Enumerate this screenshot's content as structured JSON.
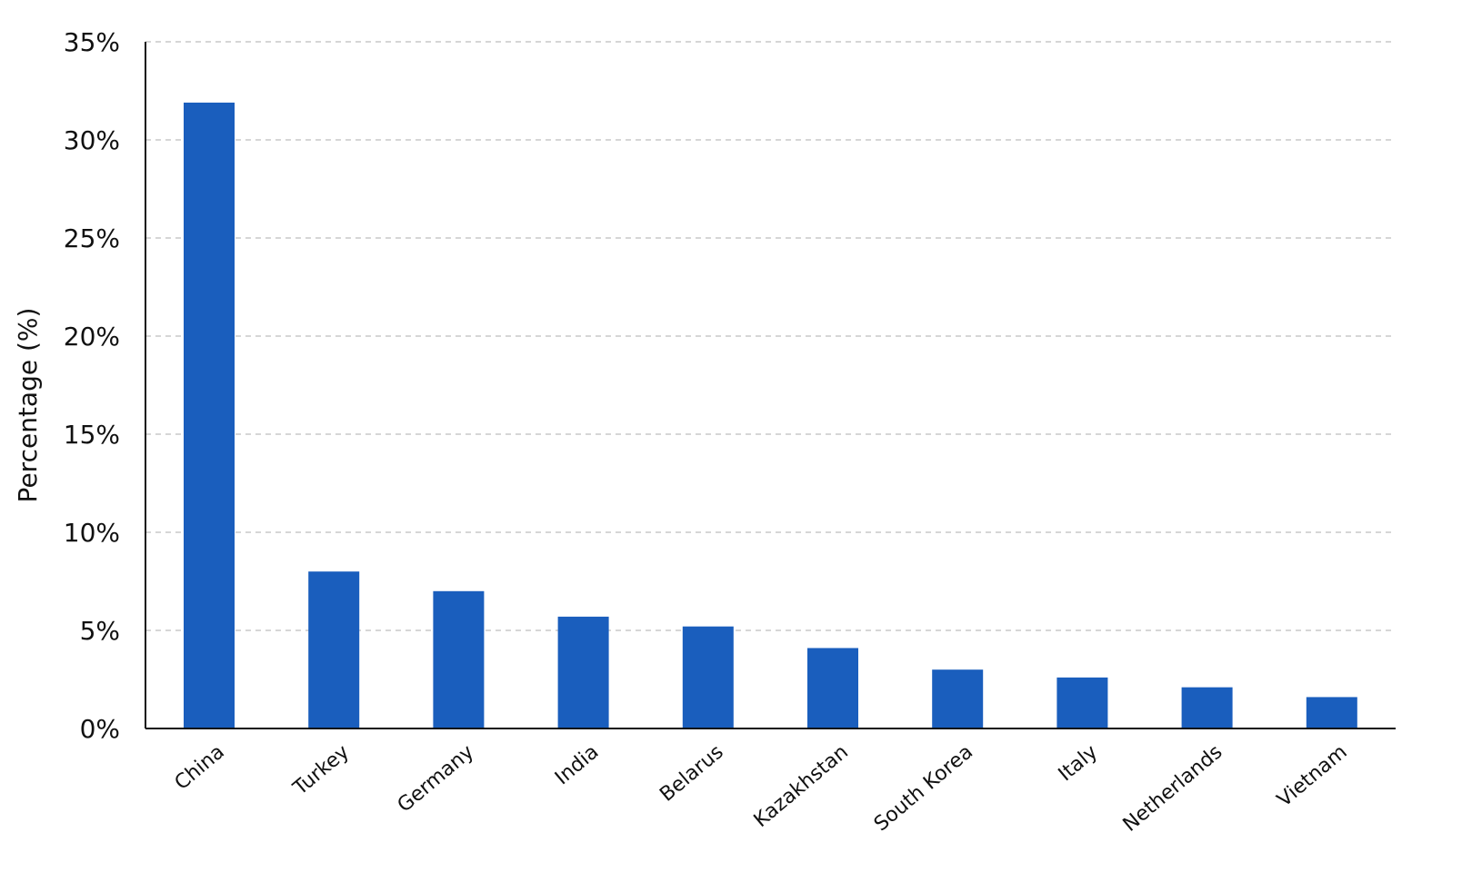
{
  "chart_data": {
    "type": "bar",
    "title": "",
    "xlabel": "",
    "ylabel": "Percentage (%)",
    "ylim": [
      0,
      35
    ],
    "yticks": [
      {
        "value": 0,
        "label": "0%"
      },
      {
        "value": 5,
        "label": "5%"
      },
      {
        "value": 10,
        "label": "10%"
      },
      {
        "value": 15,
        "label": "15%"
      },
      {
        "value": 20,
        "label": "20%"
      },
      {
        "value": 25,
        "label": "25%"
      },
      {
        "value": 30,
        "label": "30%"
      },
      {
        "value": 35,
        "label": "35%"
      }
    ],
    "grid": true,
    "legend": "none",
    "categories": [
      "China",
      "Turkey",
      "Germany",
      "India",
      "Belarus",
      "Kazakhstan",
      "South Korea",
      "Italy",
      "Netherlands",
      "Vietnam"
    ],
    "values": [
      31.9,
      8.0,
      7.0,
      5.7,
      5.2,
      4.1,
      3.0,
      2.6,
      2.1,
      1.6
    ],
    "bar_color": "#1a5ebd",
    "grid_color": "#c8c8c8",
    "axis_color": "#111111"
  }
}
